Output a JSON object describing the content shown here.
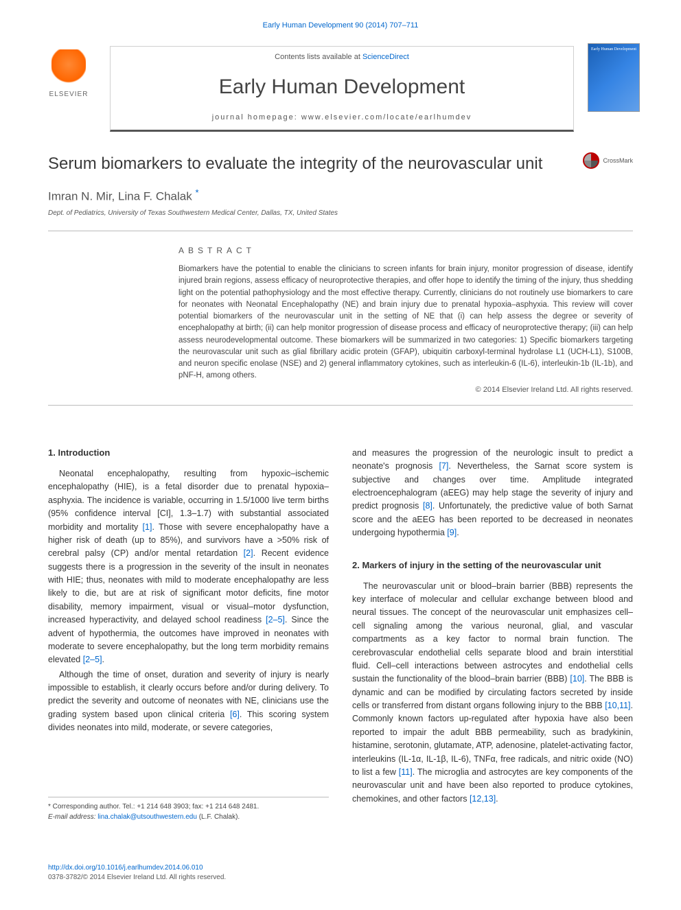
{
  "header": {
    "citation_link": "Early Human Development 90 (2014) 707–711",
    "contents_prefix": "Contents lists available at ",
    "contents_link": "ScienceDirect",
    "journal_title": "Early Human Development",
    "homepage_label": "journal homepage: www.elsevier.com/locate/earlhumdev",
    "elsevier_label": "ELSEVIER",
    "cover_text_top": "Early Human Development"
  },
  "crossmark": {
    "label": "CrossMark"
  },
  "article": {
    "title": "Serum biomarkers to evaluate the integrity of the neurovascular unit",
    "authors": "Imran N. Mir, Lina F. Chalak",
    "corr_symbol": "*",
    "affiliation": "Dept. of Pediatrics, University of Texas Southwestern Medical Center, Dallas, TX, United States"
  },
  "abstract": {
    "heading": "ABSTRACT",
    "text": "Biomarkers have the potential to enable the clinicians to screen infants for brain injury, monitor progression of disease, identify injured brain regions, assess efficacy of neuroprotective therapies, and offer hope to identify the timing of the injury, thus shedding light on the potential pathophysiology and the most effective therapy. Currently, clinicians do not routinely use biomarkers to care for neonates with Neonatal Encephalopathy (NE) and brain injury due to prenatal hypoxia–asphyxia. This review will cover potential biomarkers of the neurovascular unit in the setting of NE that (i) can help assess the degree or severity of encephalopathy at birth; (ii) can help monitor progression of disease process and efficacy of neuroprotective therapy; (iii) can help assess neurodevelopmental outcome. These biomarkers will be summarized in two categories: 1) Specific biomarkers targeting the neurovascular unit such as glial fibrillary acidic protein (GFAP), ubiquitin carboxyl-terminal hydrolase L1 (UCH-L1), S100B, and neuron specific enolase (NSE) and 2) general inflammatory cytokines, such as interleukin-6 (IL-6), interleukin-1b (IL-1b), and pNF-H, among others.",
    "copyright": "© 2014 Elsevier Ireland Ltd. All rights reserved."
  },
  "sections": {
    "s1_heading": "1. Introduction",
    "s1_p1": "Neonatal encephalopathy, resulting from hypoxic–ischemic encephalopathy (HIE), is a fetal disorder due to prenatal hypoxia–asphyxia. The incidence is variable, occurring in 1.5/1000 live term births (95% confidence interval [CI], 1.3–1.7) with substantial associated morbidity and mortality [1]. Those with severe encephalopathy have a higher risk of death (up to 85%), and survivors have a >50% risk of cerebral palsy (CP) and/or mental retardation [2]. Recent evidence suggests there is a progression in the severity of the insult in neonates with HIE; thus, neonates with mild to moderate encephalopathy are less likely to die, but are at risk of significant motor deficits, fine motor disability, memory impairment, visual or visual–motor dysfunction, increased hyperactivity, and delayed school readiness [2–5]. Since the advent of hypothermia, the outcomes have improved in neonates with moderate to severe encephalopathy, but the long term morbidity remains elevated [2–5].",
    "s1_p2": "Although the time of onset, duration and severity of injury is nearly impossible to establish, it clearly occurs before and/or during delivery. To predict the severity and outcome of neonates with NE, clinicians use the grading system based upon clinical criteria [6]. This scoring system divides neonates into mild, moderate, or severe categories,",
    "col2_p1": "and measures the progression of the neurologic insult to predict a neonate's prognosis [7]. Nevertheless, the Sarnat score system is subjective and changes over time. Amplitude integrated electroencephalogram (aEEG) may help stage the severity of injury and predict prognosis [8]. Unfortunately, the predictive value of both Sarnat score and the aEEG has been reported to be decreased in neonates undergoing hypothermia [9].",
    "s2_heading": "2. Markers of injury in the setting of the neurovascular unit",
    "s2_p1": "The neurovascular unit or blood–brain barrier (BBB) represents the key interface of molecular and cellular exchange between blood and neural tissues. The concept of the neurovascular unit emphasizes cell–cell signaling among the various neuronal, glial, and vascular compartments as a key factor to normal brain function. The cerebrovascular endothelial cells separate blood and brain interstitial fluid. Cell–cell interactions between astrocytes and endothelial cells sustain the functionality of the blood–brain barrier (BBB) [10]. The BBB is dynamic and can be modified by circulating factors secreted by inside cells or transferred from distant organs following injury to the BBB [10,11]. Commonly known factors up-regulated after hypoxia have also been reported to impair the adult BBB permeability, such as bradykinin, histamine, serotonin, glutamate, ATP, adenosine, platelet-activating factor, interleukins (IL-1α, IL-1β, IL-6), TNFα, free radicals, and nitric oxide (NO) to list a few [11]. The microglia and astrocytes are key components of the neurovascular unit and have been also reported to produce cytokines, chemokines, and other factors [12,13]."
  },
  "footer": {
    "corr_line": "* Corresponding author. Tel.: +1 214 648 3903; fax: +1 214 648 2481.",
    "email_label": "E-mail address: ",
    "email": "lina.chalak@utsouthwestern.edu",
    "email_suffix": " (L.F. Chalak).",
    "doi": "http://dx.doi.org/10.1016/j.earlhumdev.2014.06.010",
    "issn": "0378-3782/© 2014 Elsevier Ireland Ltd. All rights reserved."
  },
  "colors": {
    "link": "#0066cc",
    "text": "#333333",
    "rule": "#bbbbbb",
    "elsevier_orange": "#ff6600"
  }
}
